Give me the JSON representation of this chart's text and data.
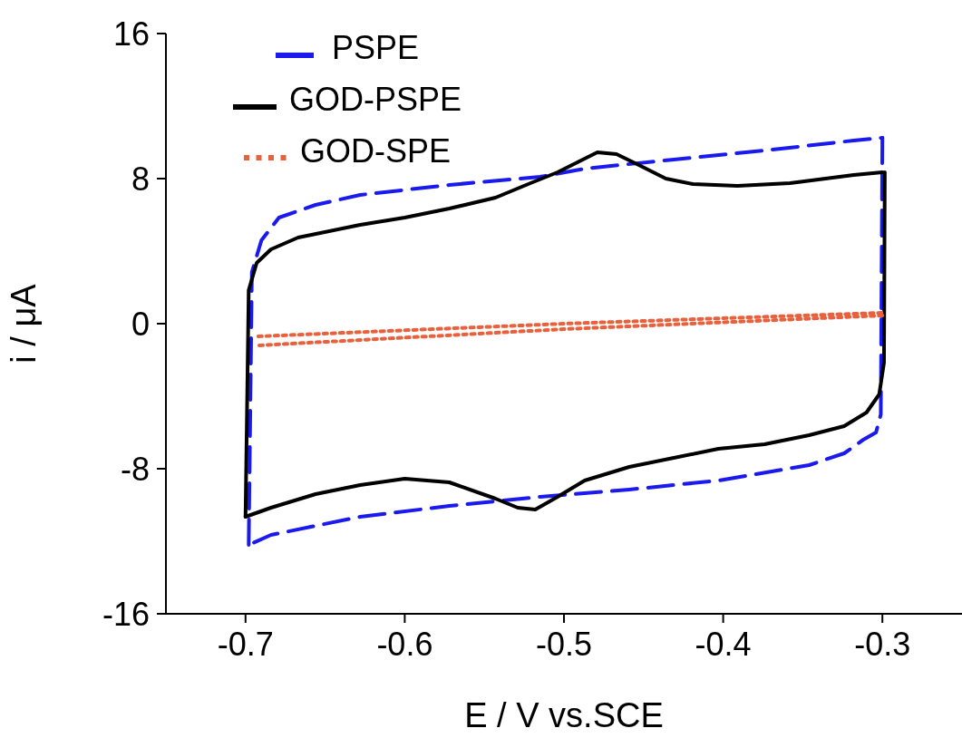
{
  "chart_data": {
    "type": "line",
    "xlabel": "E / V vs.SCE",
    "ylabel": "i / μA",
    "xlim": [
      -0.75,
      -0.25
    ],
    "xticks": [
      -0.7,
      -0.6,
      -0.5,
      -0.4,
      -0.3
    ],
    "ylim": [
      -16,
      16
    ],
    "yticks": [
      -16,
      -8,
      0,
      8,
      16
    ],
    "grid": false,
    "legend": "top left",
    "marker": "none",
    "series": [
      {
        "name": "PSPE",
        "color": "#1a1aee",
        "line_style": "dashed",
        "x": [
          -0.698,
          -0.696,
          -0.69,
          -0.679,
          -0.656,
          -0.628,
          -0.572,
          -0.515,
          -0.487,
          -0.431,
          -0.374,
          -0.318,
          -0.3
        ],
        "values": [
          -12.2,
          2.85,
          4.6,
          5.85,
          6.55,
          7.1,
          7.65,
          8.1,
          8.55,
          9.05,
          9.55,
          10.1,
          10.25
        ]
      },
      {
        "color": "#1a1aee",
        "line_style": "dashed",
        "x": [
          -0.3,
          -0.301,
          -0.304,
          -0.312,
          -0.324,
          -0.346,
          -0.403,
          -0.459,
          -0.515,
          -0.572,
          -0.628,
          -0.684,
          -0.698
        ],
        "values": [
          10.25,
          -5,
          -6,
          -6.4,
          -7.15,
          -7.8,
          -8.65,
          -9.15,
          -9.55,
          -10.05,
          -10.65,
          -11.65,
          -12.2
        ]
      },
      {
        "name": "GOD-PSPE",
        "color": "#000000",
        "line_style": "solid",
        "x": [
          -0.7,
          -0.698,
          -0.693,
          -0.684,
          -0.667,
          -0.628,
          -0.6,
          -0.572,
          -0.543,
          -0.521,
          -0.504,
          -0.487,
          -0.479,
          -0.467,
          -0.453,
          -0.436,
          -0.419,
          -0.391,
          -0.358,
          -0.318,
          -0.3
        ],
        "values": [
          -10.65,
          1.85,
          3.35,
          4.1,
          4.75,
          5.45,
          5.85,
          6.35,
          6.95,
          7.75,
          8.35,
          9.1,
          9.45,
          9.35,
          8.75,
          8,
          7.7,
          7.6,
          7.75,
          8.2,
          8.35
        ]
      },
      {
        "color": "#000000",
        "line_style": "solid",
        "x": [
          -0.2985,
          -0.299,
          -0.302,
          -0.31,
          -0.324,
          -0.346,
          -0.374,
          -0.403,
          -0.431,
          -0.459,
          -0.487,
          -0.504,
          -0.518,
          -0.529,
          -0.543,
          -0.572,
          -0.6,
          -0.628,
          -0.656,
          -0.684,
          -0.7
        ],
        "values": [
          8.35,
          -2.15,
          -3.9,
          -4.9,
          -5.65,
          -6.15,
          -6.65,
          -6.9,
          -7.4,
          -7.9,
          -8.65,
          -9.55,
          -10.25,
          -10.15,
          -9.65,
          -8.75,
          -8.55,
          -8.9,
          -9.4,
          -10.15,
          -10.65
        ]
      },
      {
        "name": "GOD-SPE",
        "color": "#e8603c",
        "line_style": "dotted",
        "x": [
          -0.692,
          -0.5,
          -0.3
        ],
        "values": [
          -0.7,
          0,
          0.6
        ]
      },
      {
        "color": "#e8603c",
        "line_style": "dotted",
        "x": [
          -0.3,
          -0.5,
          -0.692
        ],
        "values": [
          0.45,
          -0.3,
          -1.2
        ]
      }
    ]
  }
}
